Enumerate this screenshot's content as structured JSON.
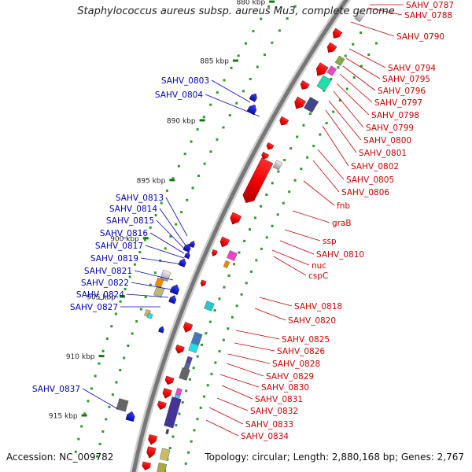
{
  "title": "Staphylococcus aureus subsp. aureus Mu3, complete genome",
  "footer": {
    "accession": "Accession: NC_009782",
    "summary": "Topology: circular; Length: 2,880,168 bp; Genes: 2,767"
  },
  "colors": {
    "plus_label": "#cc0000",
    "minus_label": "#0000bb",
    "plus_gene": "#ff0000",
    "minus_gene": "#0022ee",
    "backbone": "#777777",
    "tick": "#117711"
  },
  "kbp_ticks": [
    "880 kbp",
    "885 kbp",
    "890 kbp",
    "895 kbp",
    "900 kbp",
    "905 kbp",
    "910 kbp",
    "915 kbp"
  ],
  "minus_labels": [
    "SAHV_0803",
    "SAHV_0804",
    "SAHV_0813",
    "SAHV_0814",
    "SAHV_0815",
    "SAHV_0816",
    "SAHV_0817",
    "SAHV_0819",
    "SAHV_0821",
    "SAHV_0822",
    "SAHV_0824",
    "SAHV_0827",
    "SAHV_0837"
  ],
  "plus_labels": [
    "SAHV_0787",
    "SAHV_0788",
    "SAHV_0790",
    "SAHV_0794",
    "SAHV_0795",
    "SAHV_0796",
    "SAHV_0797",
    "SAHV_0798",
    "SAHV_0799",
    "SAHV_0800",
    "SAHV_0801",
    "SAHV_0802",
    "SAHV_0805",
    "SAHV_0806",
    "fnb",
    "graB",
    "ssp",
    "SAHV_0810",
    "nuc",
    "cspC",
    "SAHV_0818",
    "SAHV_0820",
    "SAHV_0825",
    "SAHV_0826",
    "SAHV_0828",
    "SAHV_0829",
    "SAHV_0830",
    "SAHV_0831",
    "SAHV_0832",
    "SAHV_0833",
    "SAHV_0834"
  ]
}
